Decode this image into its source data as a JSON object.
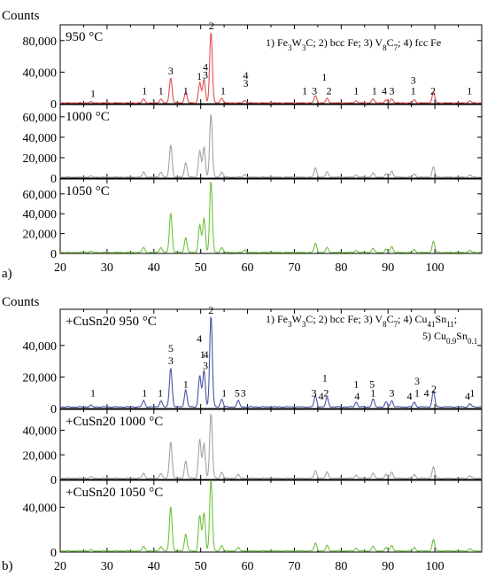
{
  "chart_data": [
    {
      "type": "line",
      "panel_label": "a)",
      "ylabel": "Counts",
      "xlim": [
        20,
        110
      ],
      "xticks": [
        "20",
        "30",
        "40",
        "50",
        "60",
        "70",
        "80",
        "90",
        "100"
      ],
      "legend_lines": [
        "1) Fe3W3C; 2) bcc Fe; 3) V8C7; 4) fcc Fe"
      ],
      "subplots": [
        {
          "label": "950 °C",
          "color": "#e05050",
          "ylim": [
            0,
            100000
          ],
          "yticks": [
            "0",
            "40,000",
            "80,000"
          ],
          "ytick_values": [
            0,
            40000,
            80000
          ],
          "peaks": [
            [
              26.5,
              1500
            ],
            [
              37.8,
              5000
            ],
            [
              41.5,
              5000
            ],
            [
              43.6,
              32000
            ],
            [
              46.8,
              14000
            ],
            [
              49.8,
              26000
            ],
            [
              50.7,
              30000
            ],
            [
              52.2,
              90000
            ],
            [
              54.5,
              6000
            ],
            [
              59.4,
              3000
            ],
            [
              74.5,
              9000
            ],
            [
              77.0,
              6000
            ],
            [
              83.2,
              2500
            ],
            [
              86.8,
              5000
            ],
            [
              89.6,
              3500
            ],
            [
              90.8,
              5000
            ],
            [
              95.6,
              4000
            ],
            [
              99.7,
              14000
            ],
            [
              107.5,
              2500
            ]
          ],
          "peak_labels": [
            {
              "x": 27,
              "y": 6000,
              "t": "1"
            },
            {
              "x": 38,
              "y": 9500,
              "t": "1"
            },
            {
              "x": 41.5,
              "y": 9500,
              "t": "1"
            },
            {
              "x": 43.6,
              "y": 35000,
              "t": "3"
            },
            {
              "x": 46.8,
              "y": 9500,
              "t": "1"
            },
            {
              "x": 49.7,
              "y": 28000,
              "t": "1"
            },
            {
              "x": 51.0,
              "y": 30000,
              "t": "3"
            },
            {
              "x": 51.0,
              "y": 40000,
              "t": "4"
            },
            {
              "x": 52.3,
              "y": 92000,
              "t": "2"
            },
            {
              "x": 54.8,
              "y": 9500,
              "t": "1"
            },
            {
              "x": 59.6,
              "y": 19000,
              "t": "3"
            },
            {
              "x": 59.6,
              "y": 29000,
              "t": "4"
            },
            {
              "x": 72.2,
              "y": 9500,
              "t": "1"
            },
            {
              "x": 74.3,
              "y": 9500,
              "t": "3"
            },
            {
              "x": 76.4,
              "y": 27000,
              "t": "1"
            },
            {
              "x": 77.4,
              "y": 9500,
              "t": "2"
            },
            {
              "x": 83.2,
              "y": 9500,
              "t": "1"
            },
            {
              "x": 87.1,
              "y": 9500,
              "t": "1"
            },
            {
              "x": 89.2,
              "y": 9500,
              "t": "4"
            },
            {
              "x": 90.8,
              "y": 9500,
              "t": "3"
            },
            {
              "x": 95.4,
              "y": 23000,
              "t": "3"
            },
            {
              "x": 95.4,
              "y": 9500,
              "t": "1"
            },
            {
              "x": 99.6,
              "y": 9500,
              "t": "2"
            },
            {
              "x": 107.4,
              "y": 9500,
              "t": "1"
            }
          ]
        },
        {
          "label": "1000 °C",
          "color": "#a3a3a3",
          "ylim": [
            0,
            72000
          ],
          "yticks": [
            "0",
            "20,000",
            "40,000",
            "60,000"
          ],
          "ytick_values": [
            0,
            20000,
            40000,
            60000
          ],
          "peaks": [
            [
              26.5,
              1000
            ],
            [
              37.8,
              5000
            ],
            [
              41.5,
              5000
            ],
            [
              43.6,
              32000
            ],
            [
              46.8,
              14000
            ],
            [
              49.8,
              26000
            ],
            [
              50.7,
              29000
            ],
            [
              52.2,
              62000
            ],
            [
              54.5,
              5000
            ],
            [
              59.4,
              2500
            ],
            [
              74.5,
              9000
            ],
            [
              77.0,
              5000
            ],
            [
              83.2,
              2000
            ],
            [
              86.8,
              4000
            ],
            [
              89.6,
              3000
            ],
            [
              90.8,
              6000
            ],
            [
              95.6,
              3000
            ],
            [
              99.7,
              10000
            ],
            [
              107.5,
              2000
            ]
          ]
        },
        {
          "label": "1050 °C",
          "color": "#6fc040",
          "ylim": [
            0,
            75000
          ],
          "yticks": [
            "0",
            "20,000",
            "40,000",
            "60,000"
          ],
          "ytick_values": [
            0,
            20000,
            40000,
            60000
          ],
          "peaks": [
            [
              26.5,
              1000
            ],
            [
              37.8,
              5000
            ],
            [
              41.5,
              5000
            ],
            [
              43.6,
              40000
            ],
            [
              46.8,
              15000
            ],
            [
              49.8,
              28000
            ],
            [
              50.7,
              34000
            ],
            [
              52.2,
              72000
            ],
            [
              54.5,
              5000
            ],
            [
              59.4,
              2500
            ],
            [
              74.5,
              9000
            ],
            [
              77.0,
              5000
            ],
            [
              83.2,
              2000
            ],
            [
              86.8,
              4000
            ],
            [
              89.6,
              3000
            ],
            [
              90.8,
              6000
            ],
            [
              95.6,
              3000
            ],
            [
              99.7,
              11000
            ],
            [
              107.5,
              2000
            ]
          ]
        }
      ]
    },
    {
      "type": "line",
      "panel_label": "b)",
      "ylabel": "Counts",
      "xlim": [
        20,
        110
      ],
      "xticks": [
        "20",
        "30",
        "40",
        "50",
        "60",
        "70",
        "80",
        "90",
        "100"
      ],
      "legend_lines": [
        "1) Fe3W3C; 2) bcc Fe; 3) V8C7; 4) Cu41Sn11;",
        "5) Cu0.9Sn0.1"
      ],
      "subplots": [
        {
          "label": "+CuSn20 950 °C",
          "color": "#4a55a2",
          "ylim": [
            0,
            63000
          ],
          "yticks": [
            "0",
            "20,000",
            "40,000"
          ],
          "ytick_values": [
            0,
            20000,
            40000
          ],
          "peaks": [
            [
              26.5,
              1000
            ],
            [
              37.8,
              4000
            ],
            [
              41.5,
              4000
            ],
            [
              43.6,
              25000
            ],
            [
              46.8,
              11000
            ],
            [
              49.8,
              20000
            ],
            [
              50.7,
              23000
            ],
            [
              52.2,
              58000
            ],
            [
              54.5,
              5000
            ],
            [
              58.0,
              4000
            ],
            [
              74.5,
              7000
            ],
            [
              77.0,
              6000
            ],
            [
              83.2,
              3000
            ],
            [
              86.8,
              5000
            ],
            [
              89.6,
              3000
            ],
            [
              90.8,
              4000
            ],
            [
              95.6,
              3000
            ],
            [
              99.7,
              10000
            ],
            [
              107.5,
              2000
            ]
          ],
          "peak_labels": [
            {
              "x": 27,
              "y": 6500,
              "t": "1"
            },
            {
              "x": 38,
              "y": 6500,
              "t": "1"
            },
            {
              "x": 41.4,
              "y": 6500,
              "t": "1"
            },
            {
              "x": 43.6,
              "y": 27000,
              "t": "3"
            },
            {
              "x": 43.6,
              "y": 35000,
              "t": "5"
            },
            {
              "x": 46.8,
              "y": 12000,
              "t": "1"
            },
            {
              "x": 49.7,
              "y": 41000,
              "t": "4"
            },
            {
              "x": 50.4,
              "y": 31000,
              "t": "1"
            },
            {
              "x": 51.1,
              "y": 31000,
              "t": "4"
            },
            {
              "x": 51.0,
              "y": 24000,
              "t": "3"
            },
            {
              "x": 52.2,
              "y": 59000,
              "t": "2"
            },
            {
              "x": 55.0,
              "y": 6500,
              "t": "1"
            },
            {
              "x": 57.8,
              "y": 6500,
              "t": "5"
            },
            {
              "x": 59.1,
              "y": 6500,
              "t": "3"
            },
            {
              "x": 74.2,
              "y": 6500,
              "t": "3"
            },
            {
              "x": 75.7,
              "y": 4500,
              "t": "4"
            },
            {
              "x": 76.5,
              "y": 16000,
              "t": "1"
            },
            {
              "x": 76.8,
              "y": 6500,
              "t": "2"
            },
            {
              "x": 83.2,
              "y": 12000,
              "t": "1"
            },
            {
              "x": 83.4,
              "y": 4500,
              "t": "4"
            },
            {
              "x": 86.6,
              "y": 12000,
              "t": "5"
            },
            {
              "x": 86.8,
              "y": 6500,
              "t": "1"
            },
            {
              "x": 90.8,
              "y": 6500,
              "t": "3"
            },
            {
              "x": 94.6,
              "y": 4500,
              "t": "4"
            },
            {
              "x": 96.2,
              "y": 14000,
              "t": "3"
            },
            {
              "x": 96.2,
              "y": 6500,
              "t": "1"
            },
            {
              "x": 98.2,
              "y": 6500,
              "t": "4"
            },
            {
              "x": 99.8,
              "y": 9000,
              "t": "2"
            },
            {
              "x": 107.0,
              "y": 4500,
              "t": "4"
            },
            {
              "x": 108.0,
              "y": 6500,
              "t": "1"
            }
          ]
        },
        {
          "label": "+CuSn20 1000 °C",
          "color": "#a3a3a3",
          "ylim": [
            0,
            57000
          ],
          "yticks": [
            "0",
            "20,000",
            "40,000"
          ],
          "ytick_values": [
            0,
            20000,
            40000
          ],
          "peaks": [
            [
              26.5,
              1000
            ],
            [
              37.8,
              4000
            ],
            [
              41.5,
              4000
            ],
            [
              43.6,
              30000
            ],
            [
              46.8,
              14000
            ],
            [
              49.8,
              32000
            ],
            [
              50.7,
              28000
            ],
            [
              52.2,
              53000
            ],
            [
              54.5,
              5000
            ],
            [
              58.0,
              3000
            ],
            [
              74.5,
              6000
            ],
            [
              77.0,
              5000
            ],
            [
              83.2,
              2500
            ],
            [
              86.8,
              4000
            ],
            [
              89.6,
              3000
            ],
            [
              90.8,
              5000
            ],
            [
              95.6,
              3000
            ],
            [
              99.7,
              9000
            ],
            [
              107.5,
              2000
            ]
          ]
        },
        {
          "label": "+CuSn20 1050 °C",
          "color": "#6fc040",
          "ylim": [
            0,
            64000
          ],
          "yticks": [
            "0",
            "40,000"
          ],
          "ytick_values": [
            0,
            40000
          ],
          "peaks": [
            [
              26.5,
              1000
            ],
            [
              37.8,
              4000
            ],
            [
              41.5,
              4000
            ],
            [
              43.6,
              40000
            ],
            [
              46.8,
              15000
            ],
            [
              49.8,
              32000
            ],
            [
              50.7,
              34000
            ],
            [
              52.2,
              64000
            ],
            [
              54.5,
              5000
            ],
            [
              58.0,
              3000
            ],
            [
              74.5,
              7000
            ],
            [
              77.0,
              5000
            ],
            [
              83.2,
              2500
            ],
            [
              86.8,
              4000
            ],
            [
              89.6,
              3000
            ],
            [
              90.8,
              5000
            ],
            [
              95.6,
              3000
            ],
            [
              99.7,
              10000
            ],
            [
              107.5,
              2000
            ]
          ]
        }
      ]
    }
  ]
}
